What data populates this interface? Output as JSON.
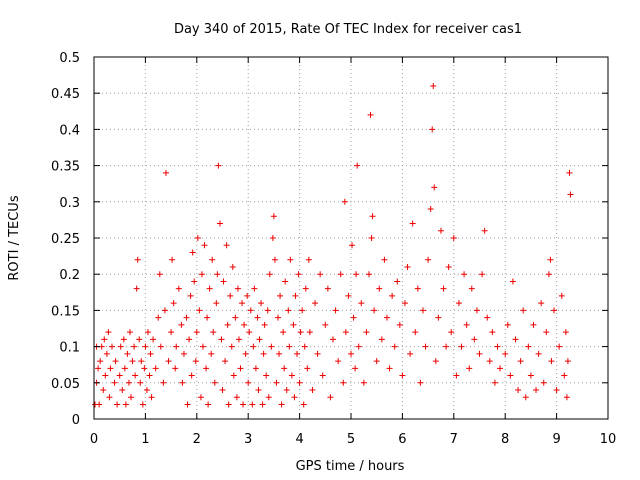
{
  "chart_data": {
    "type": "scatter",
    "title": "Day 340 of 2015, Rate Of TEC Index for receiver cas1",
    "xlabel": "GPS time / hours",
    "ylabel": "ROTI / TECUs",
    "xlim": [
      0,
      10
    ],
    "ylim": [
      0,
      0.5
    ],
    "grid": true,
    "marker": "+",
    "marker_color": "#ee0000",
    "x_ticks": [
      0,
      1,
      2,
      3,
      4,
      5,
      6,
      7,
      8,
      9,
      10
    ],
    "x_tick_labels": [
      "0",
      "1",
      "2",
      "3",
      "4",
      "5",
      "6",
      "7",
      "8",
      "9",
      "10"
    ],
    "y_ticks": [
      0,
      0.05,
      0.1,
      0.15,
      0.2,
      0.25,
      0.3,
      0.35,
      0.4,
      0.45,
      0.5
    ],
    "y_tick_labels": [
      "0",
      "0.05",
      "0.1",
      "0.15",
      "0.2",
      "0.25",
      "0.3",
      "0.35",
      "0.4",
      "0.45",
      "0.5"
    ],
    "series": [
      {
        "name": "cas1",
        "points": [
          [
            0.02,
            0.02
          ],
          [
            0.05,
            0.05
          ],
          [
            0.05,
            0.1
          ],
          [
            0.08,
            0.07
          ],
          [
            0.1,
            0.02
          ],
          [
            0.12,
            0.08
          ],
          [
            0.15,
            0.1
          ],
          [
            0.18,
            0.04
          ],
          [
            0.2,
            0.11
          ],
          [
            0.22,
            0.06
          ],
          [
            0.25,
            0.09
          ],
          [
            0.28,
            0.12
          ],
          [
            0.3,
            0.03
          ],
          [
            0.32,
            0.07
          ],
          [
            0.35,
            0.1
          ],
          [
            0.4,
            0.05
          ],
          [
            0.42,
            0.08
          ],
          [
            0.45,
            0.02
          ],
          [
            0.5,
            0.06
          ],
          [
            0.52,
            0.1
          ],
          [
            0.55,
            0.04
          ],
          [
            0.58,
            0.11
          ],
          [
            0.6,
            0.07
          ],
          [
            0.62,
            0.02
          ],
          [
            0.65,
            0.09
          ],
          [
            0.68,
            0.05
          ],
          [
            0.7,
            0.12
          ],
          [
            0.72,
            0.03
          ],
          [
            0.75,
            0.08
          ],
          [
            0.78,
            0.1
          ],
          [
            0.8,
            0.06
          ],
          [
            0.83,
            0.18
          ],
          [
            0.85,
            0.22
          ],
          [
            0.88,
            0.11
          ],
          [
            0.9,
            0.05
          ],
          [
            0.92,
            0.08
          ],
          [
            0.95,
            0.02
          ],
          [
            0.98,
            0.07
          ],
          [
            1.0,
            0.1
          ],
          [
            1.03,
            0.04
          ],
          [
            1.05,
            0.12
          ],
          [
            1.08,
            0.06
          ],
          [
            1.1,
            0.09
          ],
          [
            1.12,
            0.03
          ],
          [
            1.15,
            0.11
          ],
          [
            1.2,
            0.07
          ],
          [
            1.25,
            0.14
          ],
          [
            1.28,
            0.2
          ],
          [
            1.3,
            0.1
          ],
          [
            1.35,
            0.05
          ],
          [
            1.38,
            0.15
          ],
          [
            1.4,
            0.34
          ],
          [
            1.45,
            0.08
          ],
          [
            1.5,
            0.12
          ],
          [
            1.52,
            0.22
          ],
          [
            1.55,
            0.16
          ],
          [
            1.58,
            0.07
          ],
          [
            1.6,
            0.1
          ],
          [
            1.65,
            0.18
          ],
          [
            1.7,
            0.13
          ],
          [
            1.72,
            0.05
          ],
          [
            1.75,
            0.09
          ],
          [
            1.8,
            0.14
          ],
          [
            1.82,
            0.02
          ],
          [
            1.85,
            0.11
          ],
          [
            1.88,
            0.17
          ],
          [
            1.9,
            0.06
          ],
          [
            1.92,
            0.23
          ],
          [
            1.95,
            0.19
          ],
          [
            1.98,
            0.08
          ],
          [
            2.0,
            0.12
          ],
          [
            2.02,
            0.25
          ],
          [
            2.05,
            0.15
          ],
          [
            2.08,
            0.03
          ],
          [
            2.1,
            0.2
          ],
          [
            2.12,
            0.1
          ],
          [
            2.15,
            0.24
          ],
          [
            2.18,
            0.07
          ],
          [
            2.2,
            0.14
          ],
          [
            2.22,
            0.02
          ],
          [
            2.25,
            0.18
          ],
          [
            2.28,
            0.09
          ],
          [
            2.3,
            0.22
          ],
          [
            2.32,
            0.12
          ],
          [
            2.35,
            0.05
          ],
          [
            2.38,
            0.16
          ],
          [
            2.4,
            0.2
          ],
          [
            2.42,
            0.35
          ],
          [
            2.45,
            0.27
          ],
          [
            2.48,
            0.11
          ],
          [
            2.5,
            0.04
          ],
          [
            2.52,
            0.19
          ],
          [
            2.55,
            0.08
          ],
          [
            2.58,
            0.24
          ],
          [
            2.6,
            0.13
          ],
          [
            2.62,
            0.02
          ],
          [
            2.65,
            0.17
          ],
          [
            2.68,
            0.1
          ],
          [
            2.7,
            0.21
          ],
          [
            2.72,
            0.06
          ],
          [
            2.75,
            0.14
          ],
          [
            2.78,
            0.03
          ],
          [
            2.8,
            0.18
          ],
          [
            2.82,
            0.11
          ],
          [
            2.85,
            0.07
          ],
          [
            2.88,
            0.16
          ],
          [
            2.9,
            0.02
          ],
          [
            2.92,
            0.13
          ],
          [
            2.95,
            0.09
          ],
          [
            2.98,
            0.17
          ],
          [
            3.0,
            0.05
          ],
          [
            3.02,
            0.12
          ],
          [
            3.05,
            0.15
          ],
          [
            3.08,
            0.02
          ],
          [
            3.1,
            0.1
          ],
          [
            3.12,
            0.18
          ],
          [
            3.15,
            0.07
          ],
          [
            3.18,
            0.14
          ],
          [
            3.2,
            0.04
          ],
          [
            3.22,
            0.11
          ],
          [
            3.25,
            0.16
          ],
          [
            3.28,
            0.02
          ],
          [
            3.3,
            0.09
          ],
          [
            3.32,
            0.13
          ],
          [
            3.35,
            0.06
          ],
          [
            3.38,
            0.15
          ],
          [
            3.4,
            0.03
          ],
          [
            3.42,
            0.2
          ],
          [
            3.45,
            0.1
          ],
          [
            3.48,
            0.25
          ],
          [
            3.5,
            0.28
          ],
          [
            3.52,
            0.22
          ],
          [
            3.55,
            0.05
          ],
          [
            3.58,
            0.14
          ],
          [
            3.6,
            0.09
          ],
          [
            3.62,
            0.17
          ],
          [
            3.65,
            0.02
          ],
          [
            3.68,
            0.12
          ],
          [
            3.7,
            0.07
          ],
          [
            3.72,
            0.19
          ],
          [
            3.75,
            0.04
          ],
          [
            3.78,
            0.15
          ],
          [
            3.8,
            0.1
          ],
          [
            3.82,
            0.22
          ],
          [
            3.85,
            0.06
          ],
          [
            3.88,
            0.13
          ],
          [
            3.9,
            0.03
          ],
          [
            3.92,
            0.17
          ],
          [
            3.95,
            0.09
          ],
          [
            3.98,
            0.2
          ],
          [
            4.0,
            0.05
          ],
          [
            4.02,
            0.12
          ],
          [
            4.05,
            0.15
          ],
          [
            4.08,
            0.02
          ],
          [
            4.1,
            0.1
          ],
          [
            4.12,
            0.18
          ],
          [
            4.15,
            0.07
          ],
          [
            4.18,
            0.22
          ],
          [
            4.2,
            0.12
          ],
          [
            4.25,
            0.04
          ],
          [
            4.3,
            0.16
          ],
          [
            4.35,
            0.09
          ],
          [
            4.4,
            0.2
          ],
          [
            4.45,
            0.06
          ],
          [
            4.5,
            0.13
          ],
          [
            4.55,
            0.18
          ],
          [
            4.6,
            0.03
          ],
          [
            4.65,
            0.11
          ],
          [
            4.7,
            0.15
          ],
          [
            4.75,
            0.08
          ],
          [
            4.8,
            0.2
          ],
          [
            4.85,
            0.05
          ],
          [
            4.88,
            0.3
          ],
          [
            4.9,
            0.12
          ],
          [
            4.95,
            0.17
          ],
          [
            5.0,
            0.09
          ],
          [
            5.02,
            0.24
          ],
          [
            5.05,
            0.14
          ],
          [
            5.08,
            0.07
          ],
          [
            5.1,
            0.2
          ],
          [
            5.12,
            0.35
          ],
          [
            5.15,
            0.1
          ],
          [
            5.2,
            0.16
          ],
          [
            5.25,
            0.05
          ],
          [
            5.3,
            0.12
          ],
          [
            5.35,
            0.2
          ],
          [
            5.38,
            0.42
          ],
          [
            5.4,
            0.25
          ],
          [
            5.42,
            0.28
          ],
          [
            5.45,
            0.15
          ],
          [
            5.5,
            0.08
          ],
          [
            5.55,
            0.18
          ],
          [
            5.6,
            0.11
          ],
          [
            5.65,
            0.22
          ],
          [
            5.7,
            0.14
          ],
          [
            5.75,
            0.07
          ],
          [
            5.8,
            0.17
          ],
          [
            5.85,
            0.1
          ],
          [
            5.9,
            0.19
          ],
          [
            5.95,
            0.13
          ],
          [
            6.0,
            0.06
          ],
          [
            6.05,
            0.16
          ],
          [
            6.1,
            0.21
          ],
          [
            6.15,
            0.09
          ],
          [
            6.2,
            0.27
          ],
          [
            6.25,
            0.12
          ],
          [
            6.3,
            0.18
          ],
          [
            6.35,
            0.05
          ],
          [
            6.4,
            0.15
          ],
          [
            6.45,
            0.1
          ],
          [
            6.5,
            0.22
          ],
          [
            6.55,
            0.29
          ],
          [
            6.58,
            0.4
          ],
          [
            6.6,
            0.46
          ],
          [
            6.62,
            0.32
          ],
          [
            6.65,
            0.08
          ],
          [
            6.7,
            0.14
          ],
          [
            6.75,
            0.26
          ],
          [
            6.8,
            0.18
          ],
          [
            6.85,
            0.1
          ],
          [
            6.9,
            0.21
          ],
          [
            6.95,
            0.12
          ],
          [
            7.0,
            0.25
          ],
          [
            7.05,
            0.06
          ],
          [
            7.1,
            0.16
          ],
          [
            7.15,
            0.1
          ],
          [
            7.2,
            0.2
          ],
          [
            7.25,
            0.13
          ],
          [
            7.3,
            0.07
          ],
          [
            7.35,
            0.18
          ],
          [
            7.4,
            0.11
          ],
          [
            7.45,
            0.15
          ],
          [
            7.5,
            0.09
          ],
          [
            7.55,
            0.2
          ],
          [
            7.6,
            0.26
          ],
          [
            7.65,
            0.14
          ],
          [
            7.7,
            0.08
          ],
          [
            7.75,
            0.12
          ],
          [
            7.8,
            0.05
          ],
          [
            7.85,
            0.1
          ],
          [
            7.9,
            0.07
          ],
          [
            8.0,
            0.09
          ],
          [
            8.05,
            0.13
          ],
          [
            8.1,
            0.06
          ],
          [
            8.15,
            0.19
          ],
          [
            8.2,
            0.11
          ],
          [
            8.25,
            0.04
          ],
          [
            8.3,
            0.08
          ],
          [
            8.35,
            0.15
          ],
          [
            8.4,
            0.03
          ],
          [
            8.45,
            0.1
          ],
          [
            8.5,
            0.06
          ],
          [
            8.55,
            0.13
          ],
          [
            8.6,
            0.04
          ],
          [
            8.65,
            0.09
          ],
          [
            8.7,
            0.16
          ],
          [
            8.75,
            0.05
          ],
          [
            8.8,
            0.12
          ],
          [
            8.85,
            0.2
          ],
          [
            8.88,
            0.22
          ],
          [
            8.9,
            0.08
          ],
          [
            8.95,
            0.15
          ],
          [
            9.0,
            0.04
          ],
          [
            9.05,
            0.1
          ],
          [
            9.1,
            0.17
          ],
          [
            9.15,
            0.06
          ],
          [
            9.18,
            0.12
          ],
          [
            9.2,
            0.03
          ],
          [
            9.22,
            0.08
          ],
          [
            9.25,
            0.34
          ],
          [
            9.27,
            0.31
          ]
        ]
      }
    ]
  }
}
